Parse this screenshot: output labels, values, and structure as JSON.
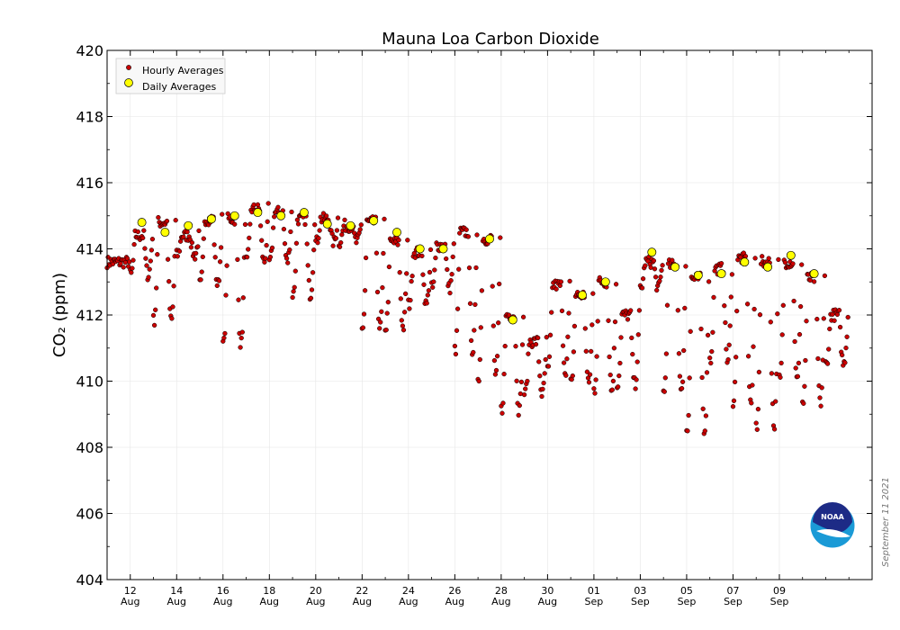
{
  "chart_data": {
    "type": "scatter",
    "title": "Mauna Loa Carbon Dioxide",
    "ylabel": "CO₂ (ppm)",
    "xlabel": "",
    "ylim": [
      404,
      420
    ],
    "y_ticks": [
      404,
      406,
      408,
      410,
      412,
      414,
      416,
      418,
      420
    ],
    "xlim": [
      11,
      44
    ],
    "x_ticks": [
      {
        "x": 12,
        "day": "12",
        "month": "Aug"
      },
      {
        "x": 14,
        "day": "14",
        "month": "Aug"
      },
      {
        "x": 16,
        "day": "16",
        "month": "Aug"
      },
      {
        "x": 18,
        "day": "18",
        "month": "Aug"
      },
      {
        "x": 20,
        "day": "20",
        "month": "Aug"
      },
      {
        "x": 22,
        "day": "22",
        "month": "Aug"
      },
      {
        "x": 24,
        "day": "24",
        "month": "Aug"
      },
      {
        "x": 26,
        "day": "26",
        "month": "Aug"
      },
      {
        "x": 28,
        "day": "28",
        "month": "Aug"
      },
      {
        "x": 30,
        "day": "30",
        "month": "Aug"
      },
      {
        "x": 32,
        "day": "01",
        "month": "Sep"
      },
      {
        "x": 34,
        "day": "03",
        "month": "Sep"
      },
      {
        "x": 36,
        "day": "05",
        "month": "Sep"
      },
      {
        "x": 38,
        "day": "07",
        "month": "Sep"
      },
      {
        "x": 40,
        "day": "09",
        "month": "Sep"
      }
    ],
    "grid": true,
    "legend_position": "top-left",
    "series": [
      {
        "name": "Hourly Averages",
        "marker": "small-circle",
        "color": "#cc0000",
        "daily_profiles": [
          {
            "day": 11,
            "base": 413.6,
            "dip": 0.0
          },
          {
            "day": 12,
            "base": 414.4,
            "dip": 1.2
          },
          {
            "day": 13,
            "base": 414.8,
            "dip": 3.0
          },
          {
            "day": 14,
            "base": 414.4,
            "dip": 0.6
          },
          {
            "day": 15,
            "base": 414.9,
            "dip": 2.0
          },
          {
            "day": 16,
            "base": 414.9,
            "dip": 3.8
          },
          {
            "day": 17,
            "base": 415.2,
            "dip": 1.6
          },
          {
            "day": 18,
            "base": 415.1,
            "dip": 1.5
          },
          {
            "day": 19,
            "base": 414.9,
            "dip": 2.3
          },
          {
            "day": 20,
            "base": 414.9,
            "dip": 0.7
          },
          {
            "day": 21,
            "base": 414.7,
            "dip": 0.5
          },
          {
            "day": 22,
            "base": 414.8,
            "dip": 3.2
          },
          {
            "day": 23,
            "base": 414.2,
            "dip": 2.6
          },
          {
            "day": 24,
            "base": 413.9,
            "dip": 1.6
          },
          {
            "day": 25,
            "base": 414.1,
            "dip": 1.3
          },
          {
            "day": 26,
            "base": 414.5,
            "dip": 3.6
          },
          {
            "day": 27,
            "base": 414.3,
            "dip": 4.2
          },
          {
            "day": 28,
            "base": 412.0,
            "dip": 2.9
          },
          {
            "day": 29,
            "base": 411.2,
            "dip": 1.6
          },
          {
            "day": 30,
            "base": 412.9,
            "dip": 2.6
          },
          {
            "day": 31,
            "base": 412.6,
            "dip": 2.7
          },
          {
            "day": 32,
            "base": 413.0,
            "dip": 3.3
          },
          {
            "day": 33,
            "base": 412.0,
            "dip": 2.1
          },
          {
            "day": 34,
            "base": 413.6,
            "dip": 0.8
          },
          {
            "day": 35,
            "base": 413.5,
            "dip": 3.9
          },
          {
            "day": 36,
            "base": 413.1,
            "dip": 4.6
          },
          {
            "day": 37,
            "base": 413.4,
            "dip": 2.8
          },
          {
            "day": 38,
            "base": 413.7,
            "dip": 4.4
          },
          {
            "day": 39,
            "base": 413.6,
            "dip": 5.0
          },
          {
            "day": 40,
            "base": 413.6,
            "dip": 3.6
          },
          {
            "day": 41,
            "base": 413.1,
            "dip": 3.8
          },
          {
            "day": 42,
            "base": 412.0,
            "dip": 1.5
          }
        ]
      },
      {
        "name": "Daily Averages",
        "marker": "large-circle",
        "color": "#ffff00",
        "x": [
          12.5,
          13.5,
          14.5,
          15.5,
          16.5,
          17.5,
          18.5,
          19.5,
          20.5,
          21.5,
          22.5,
          23.5,
          24.5,
          25.5,
          27.5,
          28.5,
          31.5,
          32.5,
          34.5,
          35.5,
          36.5,
          37.5,
          38.5,
          39.5,
          40.5,
          41.5
        ],
        "values": [
          414.8,
          414.5,
          414.7,
          414.9,
          415.0,
          415.1,
          415.0,
          415.1,
          414.75,
          414.7,
          414.85,
          414.5,
          414.0,
          414.0,
          414.3,
          411.85,
          412.6,
          413.0,
          413.9,
          413.45,
          413.2,
          413.25,
          413.6,
          413.45,
          413.8,
          413.25
        ]
      }
    ]
  },
  "credit": {
    "date_note": "September 11 2021",
    "logo_text": "NOAA"
  },
  "colors": {
    "hourly_fill": "#cc0000",
    "daily_fill": "#ffff00",
    "noaa_blue": "#0a5ba8",
    "noaa_navy": "#1d2b86",
    "noaa_cyan": "#1a9ad6"
  }
}
